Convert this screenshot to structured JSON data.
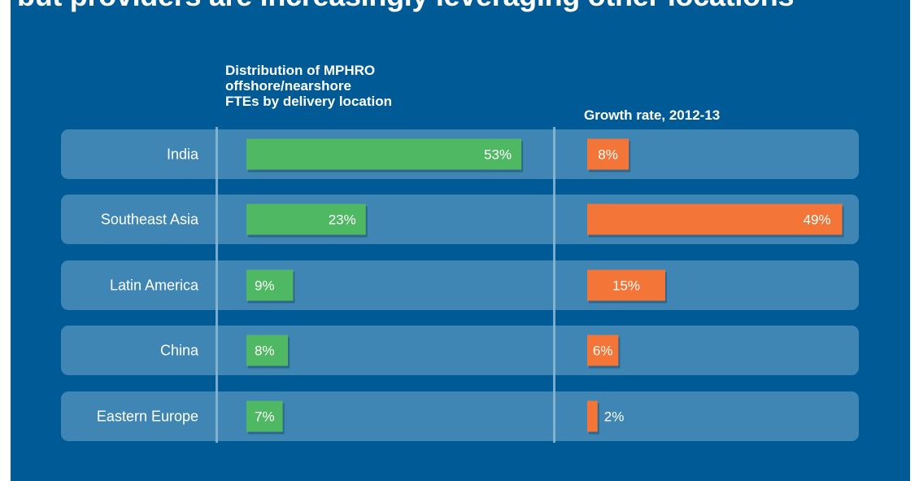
{
  "title": "but providers are increasingly leveraging other locations",
  "colors": {
    "background": "#005a96",
    "row": "#3f86b4",
    "divider": "#8fb8d6",
    "distribution_bar": "#4fb862",
    "growth_bar": "#f37538"
  },
  "chart_data": {
    "type": "bar",
    "orientation": "horizontal",
    "categories": [
      "India",
      "Southeast Asia",
      "Latin America",
      "China",
      "Eastern Europe"
    ],
    "series": [
      {
        "name": "Distribution of MPHRO offshore/nearshore FTEs by delivery location",
        "header_lines": [
          "Distribution of MPHRO",
          "offshore/nearshore",
          "FTEs by delivery location"
        ],
        "values": [
          53,
          23,
          9,
          8,
          7
        ],
        "labels": [
          "53%",
          "23%",
          "9%",
          "8%",
          "7%"
        ],
        "unit": "%"
      },
      {
        "name": "Growth rate, 2012-13",
        "header_lines": [
          "Growth rate, 2012-13"
        ],
        "values": [
          8,
          49,
          15,
          6,
          2
        ],
        "labels": [
          "8%",
          "49%",
          "15%",
          "6%",
          "2%"
        ],
        "unit": "%"
      }
    ],
    "grid": false,
    "legend": "none"
  }
}
